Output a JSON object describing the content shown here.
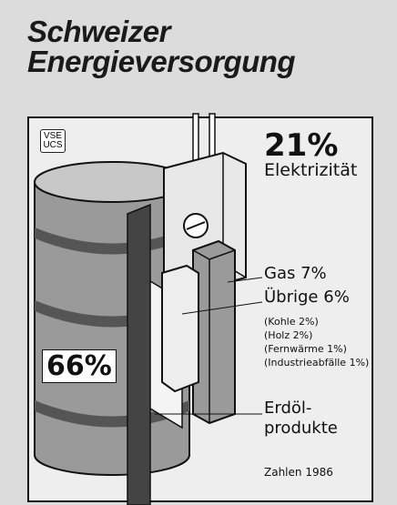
{
  "chart_data": {
    "type": "pictogram",
    "title": "Schweizer Energieversorgung",
    "logo": [
      "VSE",
      "UCS"
    ],
    "categories": [
      "Elektrizität",
      "Gas",
      "Übrige",
      "Erdöl-\nprodukte"
    ],
    "values": [
      21,
      7,
      6,
      66
    ],
    "value_labels": [
      "21%",
      "7%",
      "6%",
      "66%"
    ],
    "breakdown": [
      {
        "name": "Kohle",
        "value": 2,
        "value_label": "2%"
      },
      {
        "name": "Holz",
        "value": 2,
        "value_label": "2%"
      },
      {
        "name": "Fernwärme",
        "value": 1,
        "value_label": "1%"
      },
      {
        "name": "Industrieabfälle",
        "value": 1,
        "value_label": "1%"
      }
    ],
    "note": "Zahlen 1986"
  }
}
